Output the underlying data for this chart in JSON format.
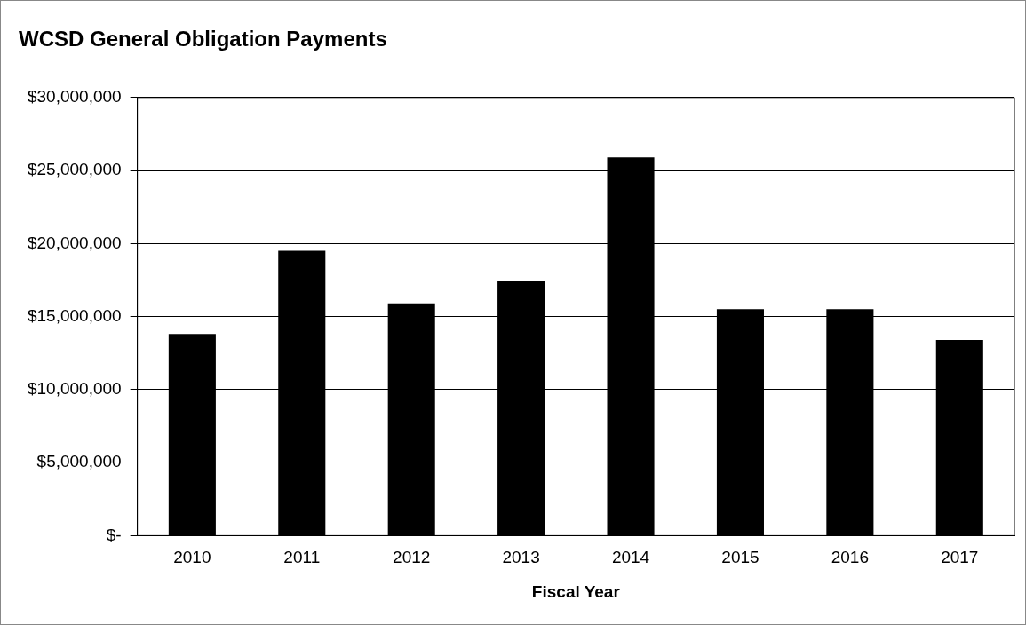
{
  "chart_data": {
    "type": "bar",
    "title": "WCSD General Obligation Payments",
    "xlabel": "Fiscal Year",
    "categories": [
      "2010",
      "2011",
      "2012",
      "2013",
      "2014",
      "2015",
      "2016",
      "2017"
    ],
    "values": [
      13800000,
      19500000,
      15900000,
      17400000,
      25900000,
      15500000,
      15500000,
      13400000
    ],
    "color": "#000000",
    "ylim": [
      0,
      30000000
    ],
    "yticks": [
      {
        "value": 0,
        "label": "$-"
      },
      {
        "value": 5000000,
        "label": "$5,000,000"
      },
      {
        "value": 10000000,
        "label": "$10,000,000"
      },
      {
        "value": 15000000,
        "label": "$15,000,000"
      },
      {
        "value": 20000000,
        "label": "$20,000,000"
      },
      {
        "value": 25000000,
        "label": "$25,000,000"
      },
      {
        "value": 30000000,
        "label": "$30,000,000"
      }
    ],
    "grid": "y",
    "legend": false
  }
}
